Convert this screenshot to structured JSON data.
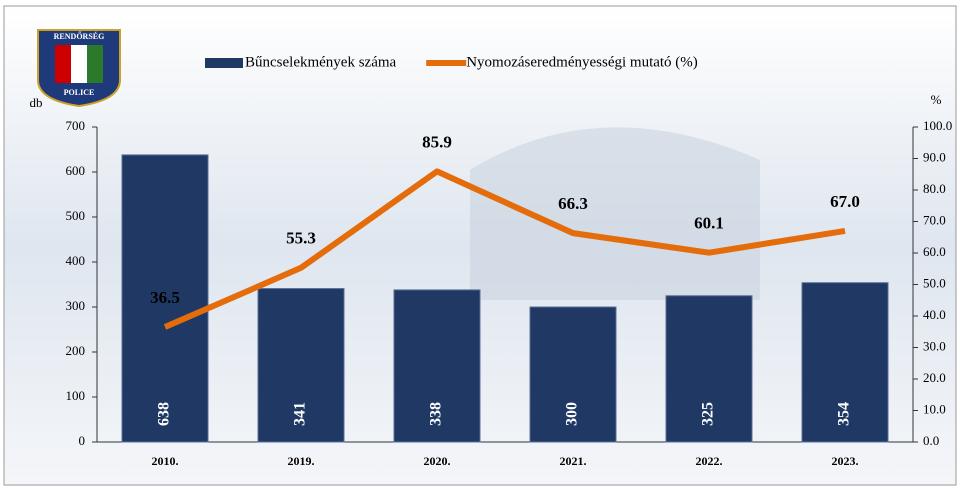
{
  "logo": {
    "top": "RENDŐRSÉG",
    "bottom": "POLICE"
  },
  "chart_data": {
    "type": "bar",
    "categories": [
      "2010.",
      "2019.",
      "2020.",
      "2021.",
      "2022.",
      "2023."
    ],
    "series": [
      {
        "name": "Bűncselekmények száma",
        "color": "#1f3864",
        "values": [
          638,
          341,
          338,
          300,
          325,
          354
        ]
      },
      {
        "name": "Nyomozáseredményességi mutató (%)",
        "color": "#e46c0a",
        "type": "line",
        "axis": "y2",
        "values": [
          36.5,
          55.3,
          85.9,
          66.3,
          60.1,
          67.0
        ],
        "value_labels": [
          "36.5",
          "55.3",
          "85.9",
          "66.3",
          "60.1",
          "67.0"
        ]
      }
    ],
    "y_label": "db",
    "y2_label": "%",
    "ylim": [
      0,
      700
    ],
    "yticks": [
      0,
      100,
      200,
      300,
      400,
      500,
      600,
      700
    ],
    "y2lim": [
      0,
      100
    ],
    "y2ticks": [
      {
        "value": 0,
        "label": "0.0"
      },
      {
        "value": 10,
        "label": "10.0"
      },
      {
        "value": 20,
        "label": "20.0"
      },
      {
        "value": 30,
        "label": "30.0"
      },
      {
        "value": 40,
        "label": "40.0"
      },
      {
        "value": 50,
        "label": "50.0"
      },
      {
        "value": 60,
        "label": "60.0"
      },
      {
        "value": 70,
        "label": "70.0"
      },
      {
        "value": 80,
        "label": "80.0"
      },
      {
        "value": 90,
        "label": "90.0"
      },
      {
        "value": 100,
        "label": "100.0"
      }
    ],
    "legend": "top"
  }
}
